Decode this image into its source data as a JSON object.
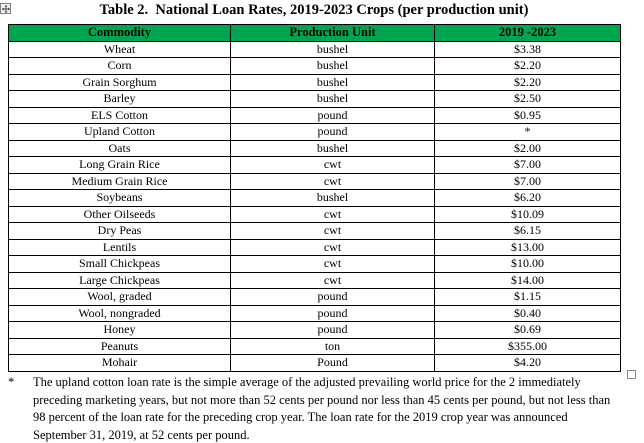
{
  "title": "Table 2.  National Loan Rates, 2019-2023 Crops (per production unit)",
  "colors": {
    "header_bg": "#00A64F",
    "border": "#000000",
    "marker_gray": "#8a8a8a"
  },
  "icons": {
    "table_move_handle": "four-way-arrow-icon",
    "end_of_text_marker": "hollow-square-icon"
  },
  "table": {
    "headers": [
      "Commodity",
      "Production Unit",
      "2019 -2023"
    ],
    "rows": [
      [
        "Wheat",
        "bushel",
        "$3.38"
      ],
      [
        "Corn",
        "bushel",
        "$2.20"
      ],
      [
        "Grain Sorghum",
        "bushel",
        "$2.20"
      ],
      [
        "Barley",
        "bushel",
        "$2.50"
      ],
      [
        "ELS Cotton",
        "pound",
        "$0.95"
      ],
      [
        "Upland Cotton",
        "pound",
        "*"
      ],
      [
        "Oats",
        "bushel",
        "$2.00"
      ],
      [
        "Long Grain Rice",
        "cwt",
        "$7.00"
      ],
      [
        "Medium Grain Rice",
        "cwt",
        "$7.00"
      ],
      [
        "Soybeans",
        "bushel",
        "$6.20"
      ],
      [
        "Other Oilseeds",
        "cwt",
        "$10.09"
      ],
      [
        "Dry Peas",
        "cwt",
        "$6.15"
      ],
      [
        "Lentils",
        "cwt",
        "$13.00"
      ],
      [
        "Small Chickpeas",
        "cwt",
        "$10.00"
      ],
      [
        "Large Chickpeas",
        "cwt",
        "$14.00"
      ],
      [
        "Wool, graded",
        "pound",
        "$1.15"
      ],
      [
        "Wool, nongraded",
        "pound",
        "$0.40"
      ],
      [
        "Honey",
        "pound",
        "$0.69"
      ],
      [
        "Peanuts",
        "ton",
        "$355.00"
      ],
      [
        "Mohair",
        "Pound",
        "$4.20"
      ]
    ]
  },
  "footnote": {
    "marker": "*",
    "text": "The upland cotton loan rate is the simple average of the adjusted prevailing world price for the 2 immediately preceding marketing years, but not more than 52 cents per pound nor less than 45 cents per pound, but not less than 98 percent of the loan rate for the preceding crop year. The loan rate for the 2019 crop year was announced September 31, 2019, at 52 cents per pound."
  }
}
